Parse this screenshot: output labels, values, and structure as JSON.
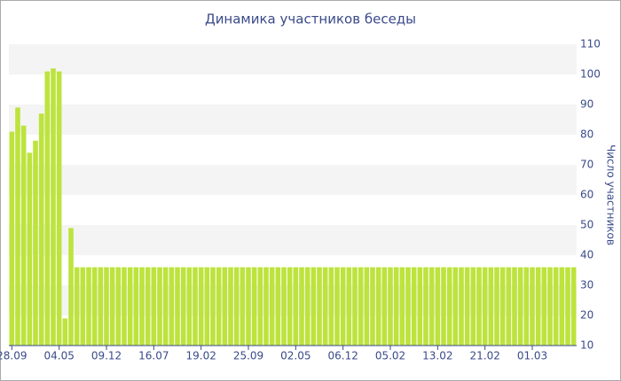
{
  "chart_data": {
    "type": "bar",
    "title": "Динамика участников беседы",
    "y_label": "Число участников",
    "categories": [
      "28.09",
      null,
      null,
      null,
      null,
      null,
      null,
      null,
      "04.05",
      null,
      null,
      null,
      null,
      null,
      null,
      null,
      "09.12",
      null,
      null,
      null,
      null,
      null,
      null,
      null,
      "16.07",
      null,
      null,
      null,
      null,
      null,
      null,
      null,
      "19.02",
      null,
      null,
      null,
      null,
      null,
      null,
      null,
      "25.09",
      null,
      null,
      null,
      null,
      null,
      null,
      null,
      "02.05",
      null,
      null,
      null,
      null,
      null,
      null,
      null,
      "06.12",
      null,
      null,
      null,
      null,
      null,
      null,
      null,
      "05.02",
      null,
      null,
      null,
      null,
      null,
      null,
      null,
      "13.02",
      null,
      null,
      null,
      null,
      null,
      null,
      null,
      "21.02",
      null,
      null,
      null,
      null,
      null,
      null,
      null,
      "01.03",
      null,
      null,
      null,
      null,
      null,
      null,
      null
    ],
    "values": [
      81,
      89,
      83,
      74,
      78,
      87,
      101,
      102,
      101,
      19,
      49,
      36,
      36,
      36,
      36,
      36,
      36,
      36,
      36,
      36,
      36,
      36,
      36,
      36,
      36,
      36,
      36,
      36,
      36,
      36,
      36,
      36,
      36,
      36,
      36,
      36,
      36,
      36,
      36,
      36,
      36,
      36,
      36,
      36,
      36,
      36,
      36,
      36,
      36,
      36,
      36,
      36,
      36,
      36,
      36,
      36,
      36,
      36,
      36,
      36,
      36,
      36,
      36,
      36,
      36,
      36,
      36,
      36,
      36,
      36,
      36,
      36,
      36,
      36,
      36,
      36,
      36,
      36,
      36,
      36,
      36,
      36,
      36,
      36,
      36,
      36,
      36,
      36,
      36,
      36,
      36,
      36,
      36,
      36,
      36,
      36
    ],
    "color": "#bde33d",
    "ylim": [
      10,
      110
    ],
    "yticks": [
      10,
      20,
      30,
      40,
      50,
      60,
      70,
      80,
      90,
      100,
      110
    ],
    "grid": "bands",
    "y_axis_side": "right"
  }
}
